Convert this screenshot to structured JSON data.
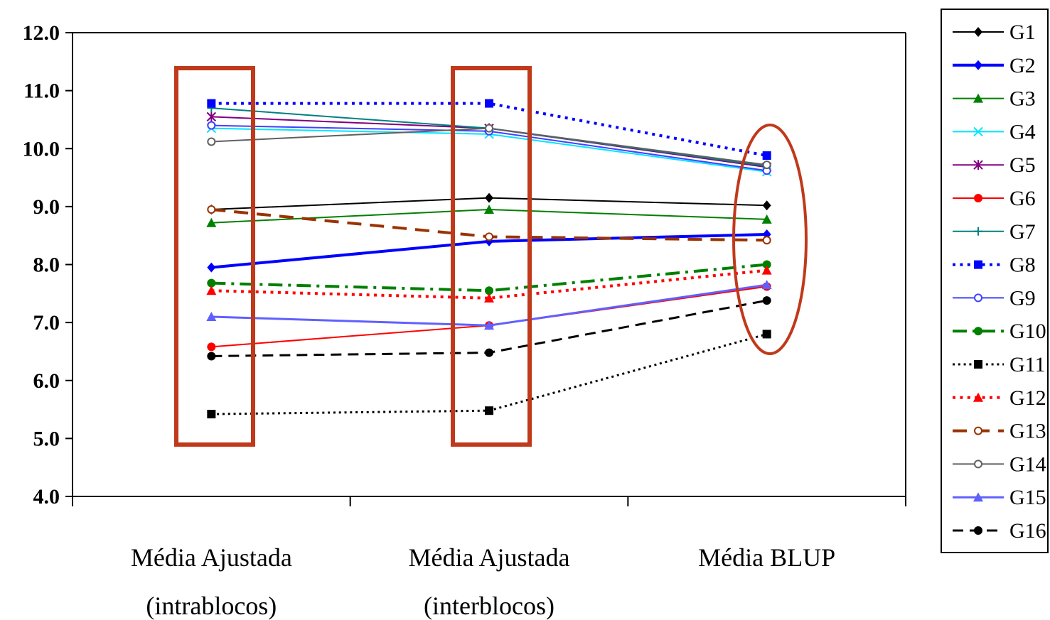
{
  "chart_data": {
    "type": "line",
    "categories": [
      [
        "Média Ajustada",
        "(intrablocos)"
      ],
      [
        "Média Ajustada",
        "(interblocos)"
      ],
      [
        "Média BLUP"
      ]
    ],
    "ylim": [
      4.0,
      12.0
    ],
    "yticks": [
      "4.0",
      "5.0",
      "6.0",
      "7.0",
      "8.0",
      "9.0",
      "10.0",
      "11.0",
      "12.0"
    ],
    "grid": false,
    "legend_position": "right",
    "series": [
      {
        "name": "G1",
        "values": [
          8.95,
          9.15,
          9.02
        ],
        "color": "#000000",
        "dash": "solid",
        "width": 2,
        "marker": "diamond"
      },
      {
        "name": "G2",
        "values": [
          7.95,
          8.4,
          8.52
        ],
        "color": "#0000ff",
        "dash": "solid",
        "width": 4,
        "marker": "diamond"
      },
      {
        "name": "G3",
        "values": [
          8.72,
          8.95,
          8.78
        ],
        "color": "#008000",
        "dash": "solid",
        "width": 2,
        "marker": "triangle"
      },
      {
        "name": "G4",
        "values": [
          10.35,
          10.25,
          9.6
        ],
        "color": "#00e5ff",
        "dash": "solid",
        "width": 2,
        "marker": "x"
      },
      {
        "name": "G5",
        "values": [
          10.55,
          10.35,
          9.68
        ],
        "color": "#800080",
        "dash": "solid",
        "width": 2,
        "marker": "star"
      },
      {
        "name": "G6",
        "values": [
          6.58,
          6.95,
          7.62
        ],
        "color": "#ff0000",
        "dash": "solid",
        "width": 2,
        "marker": "circle"
      },
      {
        "name": "G7",
        "values": [
          10.7,
          10.35,
          9.7
        ],
        "color": "#008080",
        "dash": "solid",
        "width": 2,
        "marker": "plus"
      },
      {
        "name": "G8",
        "values": [
          10.78,
          10.78,
          9.88
        ],
        "color": "#0000ff",
        "dash": "dot",
        "width": 4,
        "marker": "square"
      },
      {
        "name": "G9",
        "values": [
          10.4,
          10.3,
          9.62
        ],
        "color": "#4040ff",
        "dash": "solid",
        "width": 2,
        "marker": "circle-open"
      },
      {
        "name": "G10",
        "values": [
          7.68,
          7.55,
          8.0
        ],
        "color": "#008000",
        "dash": "dashdot",
        "width": 4,
        "marker": "circle"
      },
      {
        "name": "G11",
        "values": [
          5.42,
          5.48,
          6.8
        ],
        "color": "#000000",
        "dash": "dot",
        "width": 3,
        "marker": "square"
      },
      {
        "name": "G12",
        "values": [
          7.55,
          7.42,
          7.9
        ],
        "color": "#ff0000",
        "dash": "dot",
        "width": 4,
        "marker": "triangle"
      },
      {
        "name": "G13",
        "values": [
          8.95,
          8.48,
          8.42
        ],
        "color": "#993300",
        "dash": "dash",
        "width": 4,
        "marker": "circle-open"
      },
      {
        "name": "G14",
        "values": [
          10.12,
          10.35,
          9.72
        ],
        "color": "#606060",
        "dash": "solid",
        "width": 2,
        "marker": "circle-open"
      },
      {
        "name": "G15",
        "values": [
          7.1,
          6.95,
          7.65
        ],
        "color": "#6060ff",
        "dash": "solid",
        "width": 3,
        "marker": "triangle"
      },
      {
        "name": "G16",
        "values": [
          6.42,
          6.48,
          7.38
        ],
        "color": "#000000",
        "dash": "dash",
        "width": 3,
        "marker": "circle"
      }
    ]
  }
}
